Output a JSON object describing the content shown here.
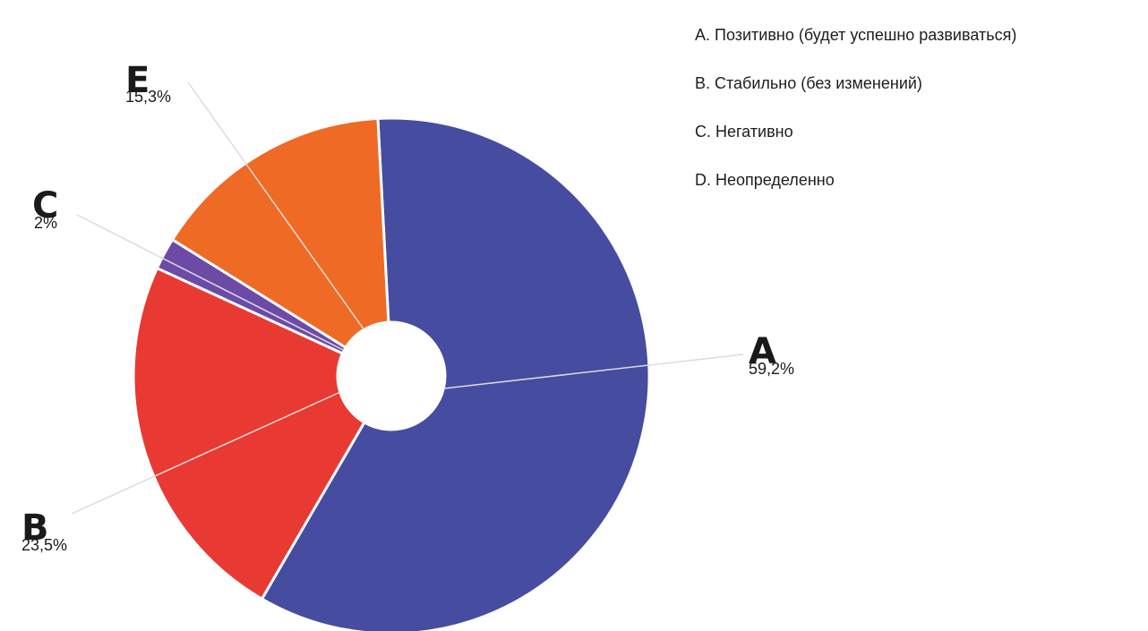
{
  "chart_data": {
    "type": "pie",
    "donut": true,
    "slices": [
      {
        "letter": "A",
        "label": "59,2%",
        "value": 59.2,
        "color": "#464c9f"
      },
      {
        "letter": "B",
        "label": "23,5%",
        "value": 23.5,
        "color": "#e83a33"
      },
      {
        "letter": "C",
        "label": "2%",
        "value": 2,
        "color": "#6c4aa6"
      },
      {
        "letter": "E",
        "label": "15,3%",
        "value": 15.3,
        "color": "#ef6a24"
      }
    ],
    "legend": [
      "A. Позитивно (будет успешно развиваться)",
      "B. Стабильно (без изменений)",
      "C. Негативно",
      "D. Неопределенно"
    ],
    "legend_position": "top-right"
  }
}
